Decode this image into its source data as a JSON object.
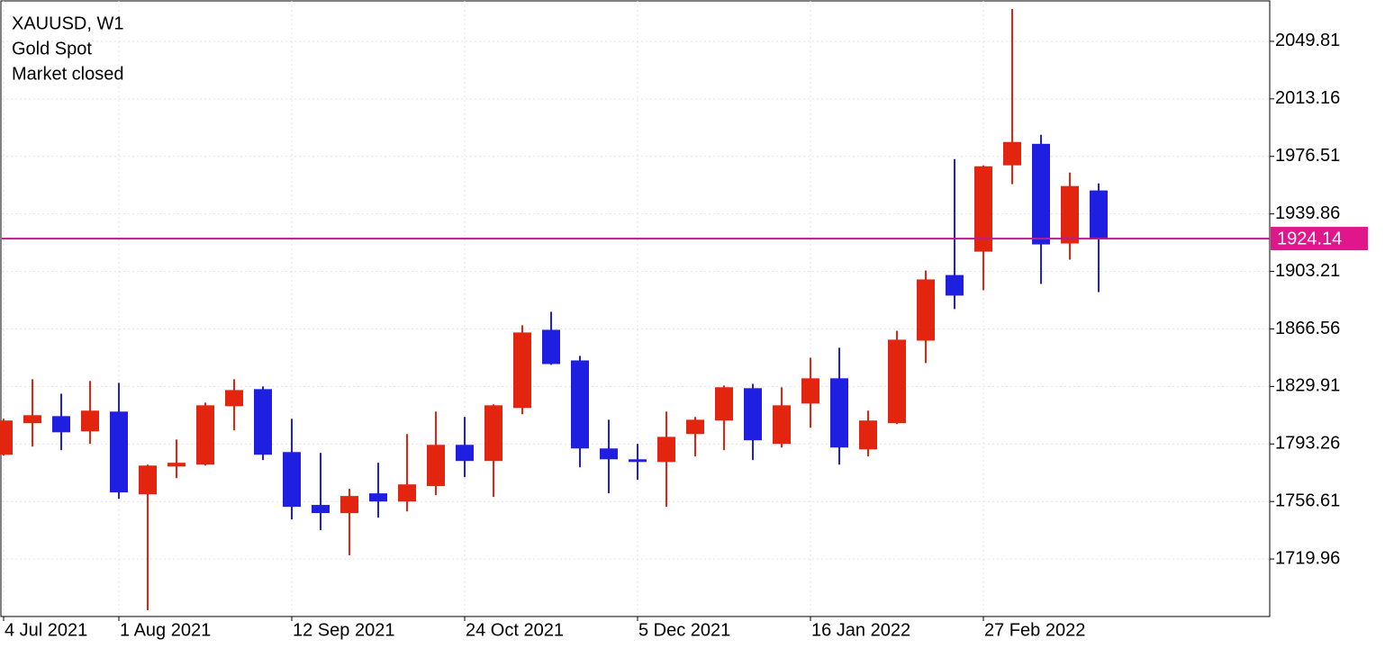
{
  "chart_data": {
    "type": "candlestick",
    "title": "XAUUSD, W1",
    "subtitle": "Gold Spot",
    "status": "Market closed",
    "categories": [
      "4 Jul 2021",
      null,
      null,
      null,
      "1 Aug 2021",
      null,
      null,
      null,
      null,
      null,
      "12 Sep 2021",
      null,
      null,
      null,
      null,
      null,
      "24 Oct 2021",
      null,
      null,
      null,
      null,
      null,
      "5 Dec 2021",
      null,
      null,
      null,
      null,
      null,
      "16 Jan 2022",
      null,
      null,
      null,
      null,
      null,
      "27 Feb 2022",
      null,
      null,
      null,
      null
    ],
    "series": [
      {
        "name": "open",
        "values": [
          1786.4,
          1806.5,
          1811.0,
          1801.3,
          1813.9,
          1761.2,
          1778.9,
          1780.1,
          1817.3,
          1828.2,
          1788.1,
          1754.4,
          1749.2,
          1761.8,
          1756.6,
          1766.4,
          1792.7,
          1782.4,
          1816.2,
          1866.0,
          1846.5,
          1790.4,
          1783.5,
          1781.8,
          1799.6,
          1808.2,
          1828.8,
          1793.3,
          1819.0,
          1835.1,
          1789.8,
          1806.5,
          1859.1,
          1900.9,
          1915.8,
          1970.8,
          1984.5,
          1921.0,
          1954.8
        ]
      },
      {
        "name": "high",
        "values": [
          1809.3,
          1834.5,
          1825.3,
          1833.4,
          1832.2,
          1780.1,
          1796.1,
          1819.6,
          1834.5,
          1829.9,
          1809.3,
          1787.6,
          1764.7,
          1781.3,
          1799.6,
          1813.9,
          1810.5,
          1818.5,
          1868.9,
          1877.5,
          1849.4,
          1808.7,
          1793.3,
          1813.9,
          1810.5,
          1830.5,
          1831.6,
          1829.4,
          1848.2,
          1854.6,
          1814.5,
          1865.4,
          1903.8,
          1974.8,
          1970.8,
          2070.4,
          1990.3,
          1966.2,
          1959.3
        ]
      },
      {
        "name": "low",
        "values": [
          1785.8,
          1791.6,
          1789.3,
          1793.3,
          1758.3,
          1687.3,
          1771.5,
          1779.5,
          1801.9,
          1783.0,
          1745.2,
          1738.3,
          1722.3,
          1746.3,
          1750.3,
          1760.6,
          1772.1,
          1759.5,
          1812.2,
          1843.7,
          1778.4,
          1761.8,
          1770.4,
          1753.2,
          1785.3,
          1789.3,
          1783.0,
          1791.0,
          1803.6,
          1780.1,
          1785.3,
          1805.9,
          1844.8,
          1879.2,
          1891.2,
          1958.8,
          1895.2,
          1910.7,
          1890.0
        ]
      },
      {
        "name": "close",
        "values": [
          1808.2,
          1811.6,
          1800.7,
          1814.5,
          1762.4,
          1779.5,
          1781.3,
          1817.9,
          1827.6,
          1786.4,
          1753.2,
          1749.2,
          1760.1,
          1756.6,
          1767.5,
          1792.7,
          1782.4,
          1817.9,
          1864.3,
          1844.2,
          1790.4,
          1783.5,
          1781.8,
          1797.8,
          1808.7,
          1829.4,
          1795.6,
          1817.9,
          1835.1,
          1791.0,
          1808.2,
          1859.7,
          1898.1,
          1887.8,
          1970.2,
          1985.7,
          1920.4,
          1957.6,
          1924.14
        ]
      }
    ],
    "up_color": "#e3240f",
    "down_color": "#1e1fe0",
    "price_line": {
      "value": 1924.14,
      "color": "#c2188f",
      "label_color": "#e0178a"
    },
    "ylim": [
      1683.32,
      2075.58
    ],
    "yticks": [
      1719.96,
      1756.61,
      1793.26,
      1829.91,
      1866.56,
      1903.21,
      1939.86,
      1976.51,
      2013.16,
      2049.81
    ],
    "grid": true
  }
}
